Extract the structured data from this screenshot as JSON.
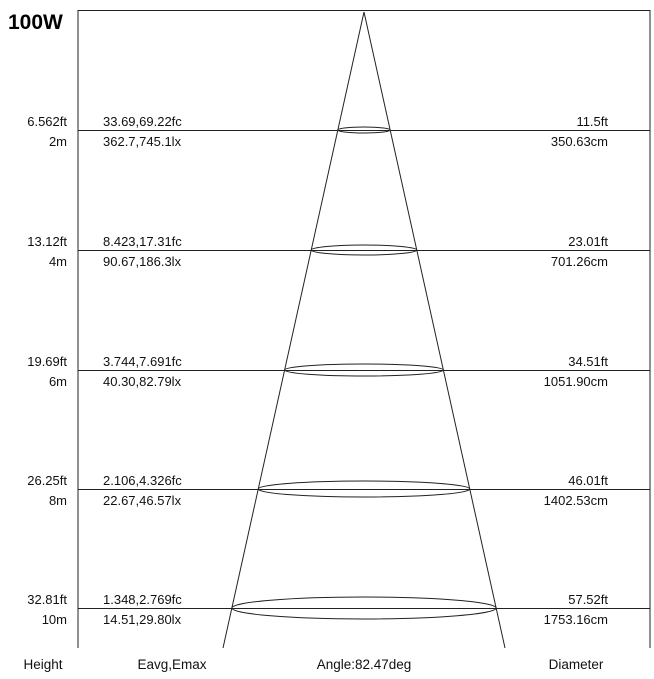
{
  "power_label": "100W",
  "footer": {
    "height": "Height",
    "illuminance": "Eavg,Emax",
    "angle": "Angle:82.47deg",
    "diameter": "Diameter"
  },
  "rows": [
    {
      "height_ft": "6.562ft",
      "height_m": "2m",
      "fc": "33.69,69.22fc",
      "lx": "362.7,745.1lx",
      "dia_ft": "11.5ft",
      "dia_cm": "350.63cm"
    },
    {
      "height_ft": "13.12ft",
      "height_m": "4m",
      "fc": "8.423,17.31fc",
      "lx": "90.67,186.3lx",
      "dia_ft": "23.01ft",
      "dia_cm": "701.26cm"
    },
    {
      "height_ft": "19.69ft",
      "height_m": "6m",
      "fc": "3.744,7.691fc",
      "lx": "40.30,82.79lx",
      "dia_ft": "34.51ft",
      "dia_cm": "1051.90cm"
    },
    {
      "height_ft": "26.25ft",
      "height_m": "8m",
      "fc": "2.106,4.326fc",
      "lx": "22.67,46.57lx",
      "dia_ft": "46.01ft",
      "dia_cm": "1402.53cm"
    },
    {
      "height_ft": "32.81ft",
      "height_m": "10m",
      "fc": "1.348,2.769fc",
      "lx": "14.51,29.80lx",
      "dia_ft": "57.52ft",
      "dia_cm": "1753.16cm"
    }
  ]
}
